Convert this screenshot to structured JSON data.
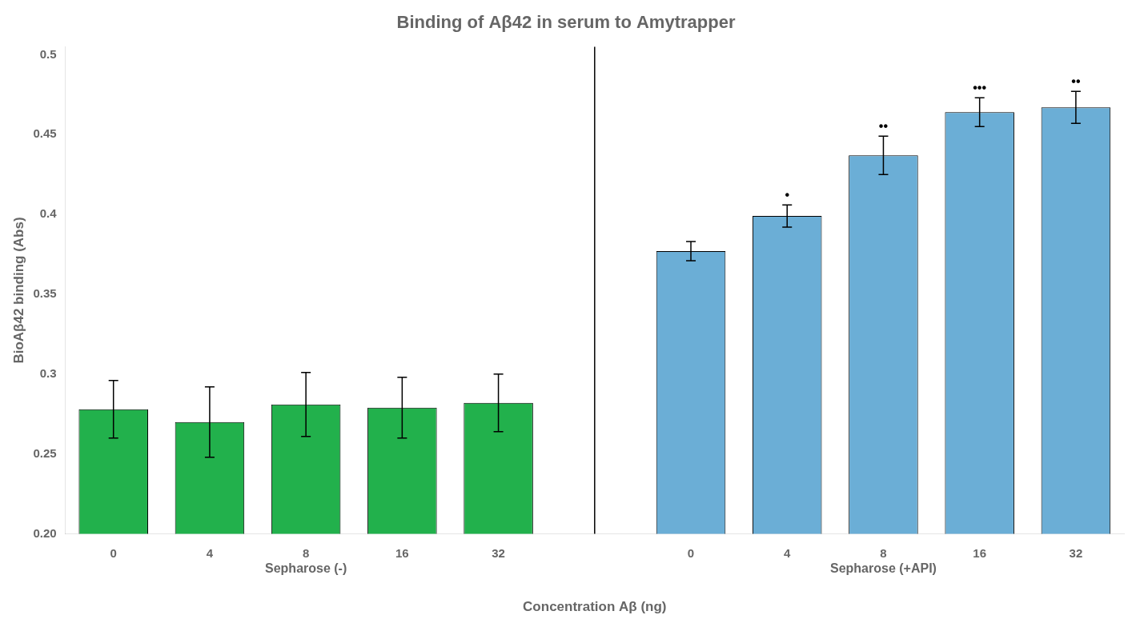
{
  "chart_data": {
    "type": "bar",
    "title": "Binding of Aβ42 in serum to Amytrapper",
    "xlabel": "Concentration Aβ (ng)",
    "ylabel": "BioAβ42 binding (Abs)",
    "categories": [
      "0",
      "4",
      "8",
      "16",
      "32"
    ],
    "series": [
      {
        "name": "Sepharose (-)",
        "color": "#22b14c",
        "values": [
          0.278,
          0.27,
          0.281,
          0.279,
          0.282
        ],
        "errors": [
          0.018,
          0.022,
          0.02,
          0.019,
          0.018
        ]
      },
      {
        "name": "Sepharose (+API)",
        "color": "#6baed6",
        "values": [
          0.377,
          0.399,
          0.437,
          0.464,
          0.467
        ],
        "errors": [
          0.006,
          0.007,
          0.012,
          0.009,
          0.01
        ],
        "significance": [
          null,
          "•",
          "••",
          "•••",
          "••"
        ]
      }
    ],
    "ylim": [
      0.2,
      0.505
    ],
    "yticks": [
      {
        "value": 0.2,
        "label": "0.20"
      },
      0.25,
      0.3,
      0.35,
      0.4,
      0.45,
      0.5
    ],
    "grid": false
  }
}
